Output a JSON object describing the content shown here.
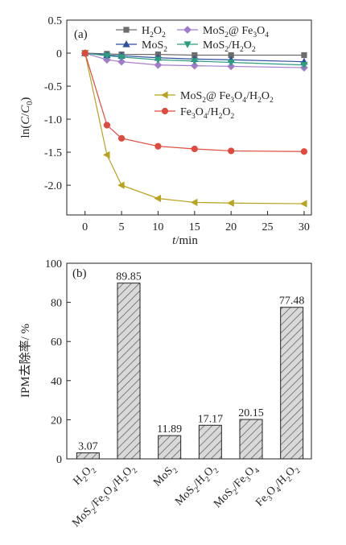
{
  "chart_data": [
    {
      "panel": "(a)",
      "type": "line",
      "xlabel": "t/min",
      "ylabel": "ln(C/C0)",
      "xlim": [
        -2.5,
        31
      ],
      "ylim": [
        -2.45,
        0.5
      ],
      "x_ticks": [
        0,
        5,
        10,
        15,
        20,
        25,
        30
      ],
      "y_ticks": [
        0.5,
        0,
        -0.5,
        -1.0,
        -1.5,
        -2.0
      ],
      "y_tick_labels": [
        "0.5",
        "0",
        "-0.5",
        "-1.0",
        "-1.5",
        "-2.0"
      ],
      "legend": "top-right",
      "x": [
        0,
        3,
        5,
        10,
        15,
        20,
        30
      ],
      "series": [
        {
          "name": "H2O2",
          "color": "#6d6d6d",
          "marker": "square",
          "values": [
            0,
            -0.01,
            -0.02,
            -0.02,
            -0.03,
            -0.03,
            -0.03
          ]
        },
        {
          "name": "MoS2@ Fe3O4",
          "color": "#a37cc9",
          "marker": "diamond",
          "values": [
            0,
            -0.1,
            -0.13,
            -0.18,
            -0.19,
            -0.2,
            -0.22
          ]
        },
        {
          "name": "MoS2",
          "color": "#2f4f9f",
          "marker": "triangle-up",
          "values": [
            0,
            -0.03,
            -0.04,
            -0.07,
            -0.09,
            -0.1,
            -0.13
          ]
        },
        {
          "name": "MoS2/H2O2",
          "color": "#2e9e7f",
          "marker": "triangle-down",
          "values": [
            0,
            -0.04,
            -0.06,
            -0.1,
            -0.12,
            -0.14,
            -0.18
          ]
        },
        {
          "name": "MoS2@ Fe3O4/H2O2",
          "color": "#b8a21e",
          "marker": "triangle-left",
          "values": [
            0,
            -1.54,
            -2.0,
            -2.2,
            -2.26,
            -2.27,
            -2.28
          ]
        },
        {
          "name": "Fe3O4/H2O2",
          "color": "#e04a3c",
          "marker": "circle",
          "values": [
            0,
            -1.09,
            -1.29,
            -1.41,
            -1.45,
            -1.48,
            -1.49
          ]
        }
      ]
    },
    {
      "panel": "(b)",
      "type": "bar",
      "ylabel": "IPM去除率/ %",
      "ylim": [
        0,
        100
      ],
      "y_ticks": [
        0,
        20,
        40,
        60,
        80,
        100
      ],
      "categories": [
        "H2O2",
        "MoS2/Fe3O4/H2O2",
        "MoS2",
        "MoS2/H2O2",
        "MoS2/Fe3O4",
        "Fe3O4/H2O2"
      ],
      "values": [
        3.07,
        89.85,
        11.89,
        17.17,
        20.15,
        77.48
      ],
      "value_labels": [
        "3.07",
        "89.85",
        "11.89",
        "17.17",
        "20.15",
        "77.48"
      ],
      "bar_fill": "hatched"
    }
  ]
}
